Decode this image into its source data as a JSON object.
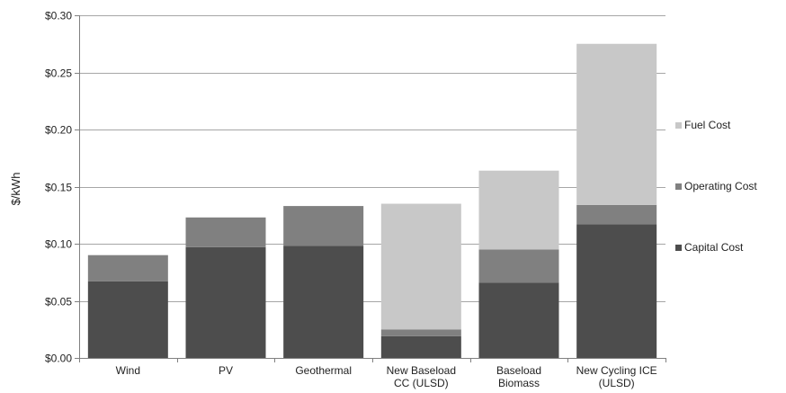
{
  "chart_data": {
    "type": "bar",
    "stacked": true,
    "categories": [
      [
        "Wind"
      ],
      [
        "PV"
      ],
      [
        "Geothermal"
      ],
      [
        "New Baseload",
        "CC (ULSD)"
      ],
      [
        "Baseload",
        "Biomass"
      ],
      [
        "New Cycling ICE",
        "(ULSD)"
      ]
    ],
    "series": [
      {
        "name": "Capital Cost",
        "color": "#4d4d4d",
        "values": [
          0.067,
          0.097,
          0.098,
          0.019,
          0.066,
          0.117
        ]
      },
      {
        "name": "Operating Cost",
        "color": "#808080",
        "values": [
          0.023,
          0.026,
          0.035,
          0.006,
          0.029,
          0.017
        ]
      },
      {
        "name": "Fuel Cost",
        "color": "#c8c8c8",
        "values": [
          0.0,
          0.0,
          0.0,
          0.11,
          0.069,
          0.141
        ]
      }
    ],
    "ylabel": "$/kWh",
    "xlabel": "",
    "ylim": [
      0,
      0.3
    ],
    "yticks": [
      "$0.00",
      "$0.05",
      "$0.10",
      "$0.15",
      "$0.20",
      "$0.25",
      "$0.30"
    ],
    "ytick_values": [
      0,
      0.05,
      0.1,
      0.15,
      0.2,
      0.25,
      0.3
    ],
    "grid": true,
    "legend": {
      "placement": "right",
      "order": [
        "Fuel Cost",
        "Operating Cost",
        "Capital Cost"
      ]
    }
  }
}
